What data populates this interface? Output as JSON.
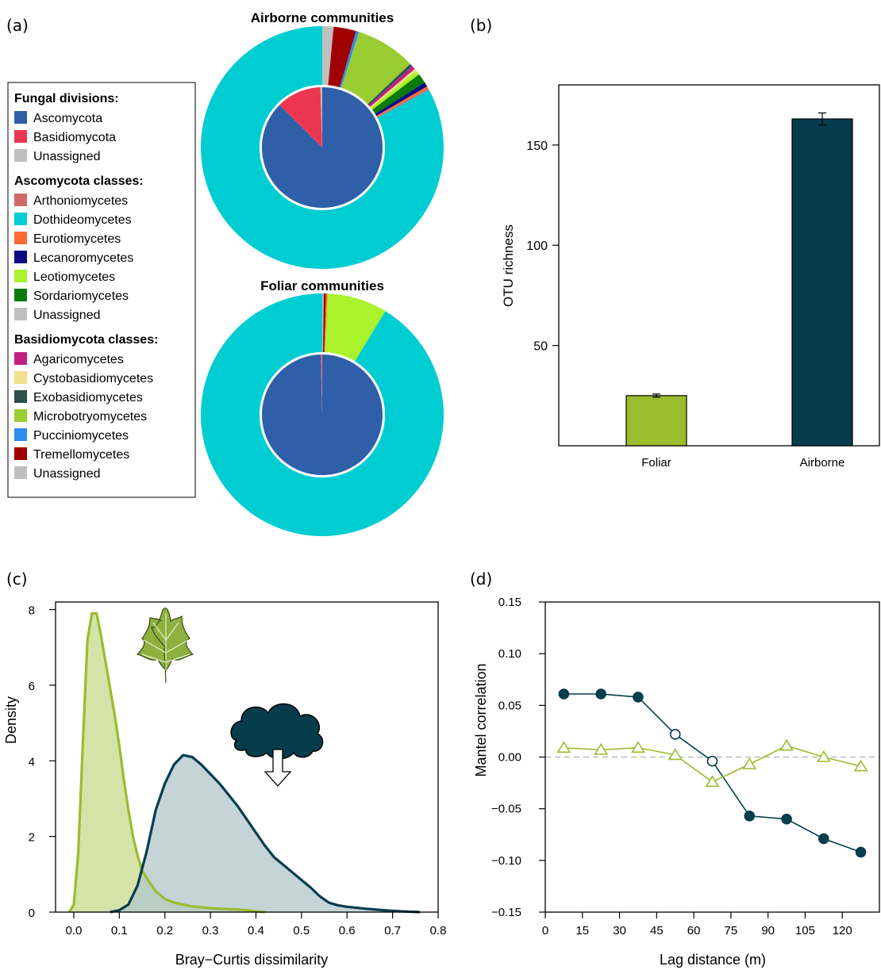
{
  "panels": {
    "a": "(a)",
    "b": "(b)",
    "c": "(c)",
    "d": "(d)"
  },
  "legend": {
    "groups": [
      {
        "title": "Fungal divisions:",
        "items": [
          {
            "label": "Ascomycota",
            "color": "#2e5fa8"
          },
          {
            "label": "Basidiomycota",
            "color": "#ec3651"
          },
          {
            "label": "Unassigned",
            "color": "#bfbfbf"
          }
        ]
      },
      {
        "title": "Ascomycota classes:",
        "items": [
          {
            "label": "Arthoniomycetes",
            "color": "#d06a6a"
          },
          {
            "label": "Dothideomycetes",
            "color": "#00cdd1"
          },
          {
            "label": "Eurotiomycetes",
            "color": "#ff6b33"
          },
          {
            "label": "Lecanoromycetes",
            "color": "#0b0b84"
          },
          {
            "label": "Leotiomycetes",
            "color": "#a9f22c"
          },
          {
            "label": "Sordariomycetes",
            "color": "#0a7a0a"
          },
          {
            "label": "Unassigned",
            "color": "#bfbfbf"
          }
        ]
      },
      {
        "title": "Basidiomycota classes:",
        "items": [
          {
            "label": "Agaricomycetes",
            "color": "#c4207f"
          },
          {
            "label": "Cystobasidiomycetes",
            "color": "#f1e08c"
          },
          {
            "label": "Exobasidiomycetes",
            "color": "#2f4f4f"
          },
          {
            "label": "Microbotryomycetes",
            "color": "#9acd32"
          },
          {
            "label": "Pucciniomycetes",
            "color": "#2d8cf0"
          },
          {
            "label": "Tremellomycetes",
            "color": "#a00000"
          },
          {
            "label": "Unassigned",
            "color": "#bfbfbf"
          }
        ]
      }
    ]
  },
  "chart_data": [
    {
      "panel": "a-top",
      "type": "pie",
      "title": "Airborne communities",
      "inner": [
        {
          "name": "Ascomycota",
          "value": 87.5,
          "color": "#2e5fa8"
        },
        {
          "name": "Basidiomycota",
          "value": 12.0,
          "color": "#ec3651"
        },
        {
          "name": "Unassigned",
          "value": 0.5,
          "color": "#bfbfbf"
        }
      ],
      "outer": [
        {
          "name": "Unassigned",
          "value": 1.5,
          "color": "#bfbfbf"
        },
        {
          "name": "Tremellomycetes",
          "value": 3.0,
          "color": "#a00000"
        },
        {
          "name": "Pucciniomycetes",
          "value": 0.4,
          "color": "#2d8cf0"
        },
        {
          "name": "Microbotryomycetes",
          "value": 8.0,
          "color": "#9acd32"
        },
        {
          "name": "Exobasidiomycetes",
          "value": 0.4,
          "color": "#2f4f4f"
        },
        {
          "name": "Agaricomycetes",
          "value": 0.5,
          "color": "#c4207f"
        },
        {
          "name": "Cystobasidiomycetes",
          "value": 0.3,
          "color": "#f1e08c"
        },
        {
          "name": "Leotiomycetes",
          "value": 0.6,
          "color": "#a9f22c"
        },
        {
          "name": "Sordariomycetes",
          "value": 1.3,
          "color": "#0a7a0a"
        },
        {
          "name": "Lecanoromycetes",
          "value": 0.6,
          "color": "#0b0b84"
        },
        {
          "name": "Eurotiomycetes",
          "value": 0.3,
          "color": "#ff6b33"
        },
        {
          "name": "Arthoniomycetes",
          "value": 0.2,
          "color": "#d06a6a"
        },
        {
          "name": "Dothideomycetes",
          "value": 82.9,
          "color": "#00cdd1"
        }
      ]
    },
    {
      "panel": "a-bottom",
      "type": "pie",
      "title": "Foliar communities",
      "inner": [
        {
          "name": "Ascomycota",
          "value": 99.6,
          "color": "#2e5fa8"
        },
        {
          "name": "Basidiomycota",
          "value": 0.3,
          "color": "#ec3651"
        },
        {
          "name": "Unassigned",
          "value": 0.1,
          "color": "#bfbfbf"
        }
      ],
      "outer": [
        {
          "name": "Unassigned",
          "value": 0.2,
          "color": "#bfbfbf"
        },
        {
          "name": "Tremellomycetes",
          "value": 0.3,
          "color": "#a00000"
        },
        {
          "name": "Eurotiomycetes",
          "value": 0.2,
          "color": "#ff6b33"
        },
        {
          "name": "Leotiomycetes",
          "value": 8.0,
          "color": "#a9f22c"
        },
        {
          "name": "Dothideomycetes",
          "value": 91.3,
          "color": "#00cdd1"
        }
      ]
    },
    {
      "panel": "b",
      "type": "bar",
      "categories": [
        "Foliar",
        "Airborne"
      ],
      "values": [
        25,
        163
      ],
      "errors": [
        0.8,
        3
      ],
      "colors": [
        "#9bbc2d",
        "#063d4d"
      ],
      "xlabel": "",
      "ylabel": "OTU richness",
      "yticks": [
        50,
        100,
        150
      ],
      "ylim": [
        0,
        180
      ]
    },
    {
      "panel": "c",
      "type": "area",
      "xlabel": "Bray−Curtis dissimilarity",
      "ylabel": "Density",
      "xlim": [
        -0.04,
        0.8
      ],
      "ylim": [
        0,
        8.2
      ],
      "xticks": [
        0.0,
        0.1,
        0.2,
        0.3,
        0.4,
        0.5,
        0.6,
        0.7,
        0.8
      ],
      "xtick_labels": [
        "0.0",
        "0.1",
        "0.2",
        "0.3",
        "0.4",
        "0.5",
        "0.6",
        "0.7",
        "0.8"
      ],
      "yticks": [
        0,
        2,
        4,
        6,
        8
      ],
      "series": [
        {
          "color": "#9bbc2d",
          "fill": "#d6e3a8",
          "x": [
            -0.01,
            0.0,
            0.01,
            0.02,
            0.03,
            0.04,
            0.05,
            0.06,
            0.07,
            0.08,
            0.09,
            0.1,
            0.11,
            0.12,
            0.13,
            0.14,
            0.15,
            0.16,
            0.18,
            0.2,
            0.22,
            0.24,
            0.26,
            0.28,
            0.3,
            0.32,
            0.34,
            0.36,
            0.38,
            0.4,
            0.42
          ],
          "y": [
            0,
            0.2,
            1.6,
            4.5,
            7.2,
            7.9,
            7.9,
            7.3,
            6.6,
            5.9,
            5.2,
            4.4,
            3.5,
            2.7,
            2.0,
            1.5,
            1.1,
            0.9,
            0.55,
            0.35,
            0.25,
            0.2,
            0.15,
            0.13,
            0.1,
            0.09,
            0.08,
            0.07,
            0.05,
            0.02,
            0
          ]
        },
        {
          "color": "#063d4d",
          "fill": "#b3c8cc",
          "x": [
            0.08,
            0.1,
            0.12,
            0.14,
            0.16,
            0.18,
            0.2,
            0.22,
            0.24,
            0.26,
            0.28,
            0.3,
            0.32,
            0.34,
            0.36,
            0.38,
            0.4,
            0.42,
            0.44,
            0.46,
            0.48,
            0.5,
            0.52,
            0.54,
            0.56,
            0.58,
            0.6,
            0.64,
            0.68,
            0.72,
            0.76
          ],
          "y": [
            0,
            0.05,
            0.2,
            0.7,
            1.6,
            2.7,
            3.4,
            3.9,
            4.15,
            4.1,
            3.9,
            3.65,
            3.4,
            3.1,
            2.8,
            2.45,
            2.1,
            1.75,
            1.45,
            1.25,
            1.05,
            0.85,
            0.65,
            0.42,
            0.25,
            0.18,
            0.14,
            0.09,
            0.05,
            0.02,
            0
          ]
        }
      ]
    },
    {
      "panel": "d",
      "type": "line",
      "xlabel": "Lag distance (m)",
      "ylabel": "Mantel correlation",
      "xlim": [
        0,
        135
      ],
      "ylim": [
        -0.15,
        0.15
      ],
      "xticks": [
        0,
        15,
        30,
        45,
        60,
        75,
        90,
        105,
        120
      ],
      "yticks": [
        -0.15,
        -0.1,
        -0.05,
        0.0,
        0.05,
        0.1,
        0.15
      ],
      "ytick_labels": [
        "−0.15",
        "−0.10",
        "−0.05",
        "0.00",
        "0.05",
        "0.10",
        "0.15"
      ],
      "reference_line": 0,
      "series": [
        {
          "marker": "circle",
          "color": "#063d4d",
          "x": [
            7.5,
            22.5,
            37.5,
            52.5,
            67.5,
            82.5,
            97.5,
            112.5,
            127.5
          ],
          "y": [
            0.061,
            0.061,
            0.058,
            0.022,
            -0.004,
            -0.057,
            -0.06,
            -0.079,
            -0.092
          ],
          "filled": [
            true,
            true,
            true,
            false,
            false,
            true,
            true,
            true,
            true
          ]
        },
        {
          "marker": "triangle",
          "color": "#9bbc2d",
          "x": [
            7.5,
            22.5,
            37.5,
            52.5,
            67.5,
            82.5,
            97.5,
            112.5,
            127.5
          ],
          "y": [
            0.009,
            0.007,
            0.009,
            0.002,
            -0.024,
            -0.007,
            0.011,
            0.0,
            -0.009
          ],
          "filled": [
            false,
            false,
            false,
            false,
            false,
            false,
            false,
            false,
            false
          ]
        }
      ]
    }
  ]
}
